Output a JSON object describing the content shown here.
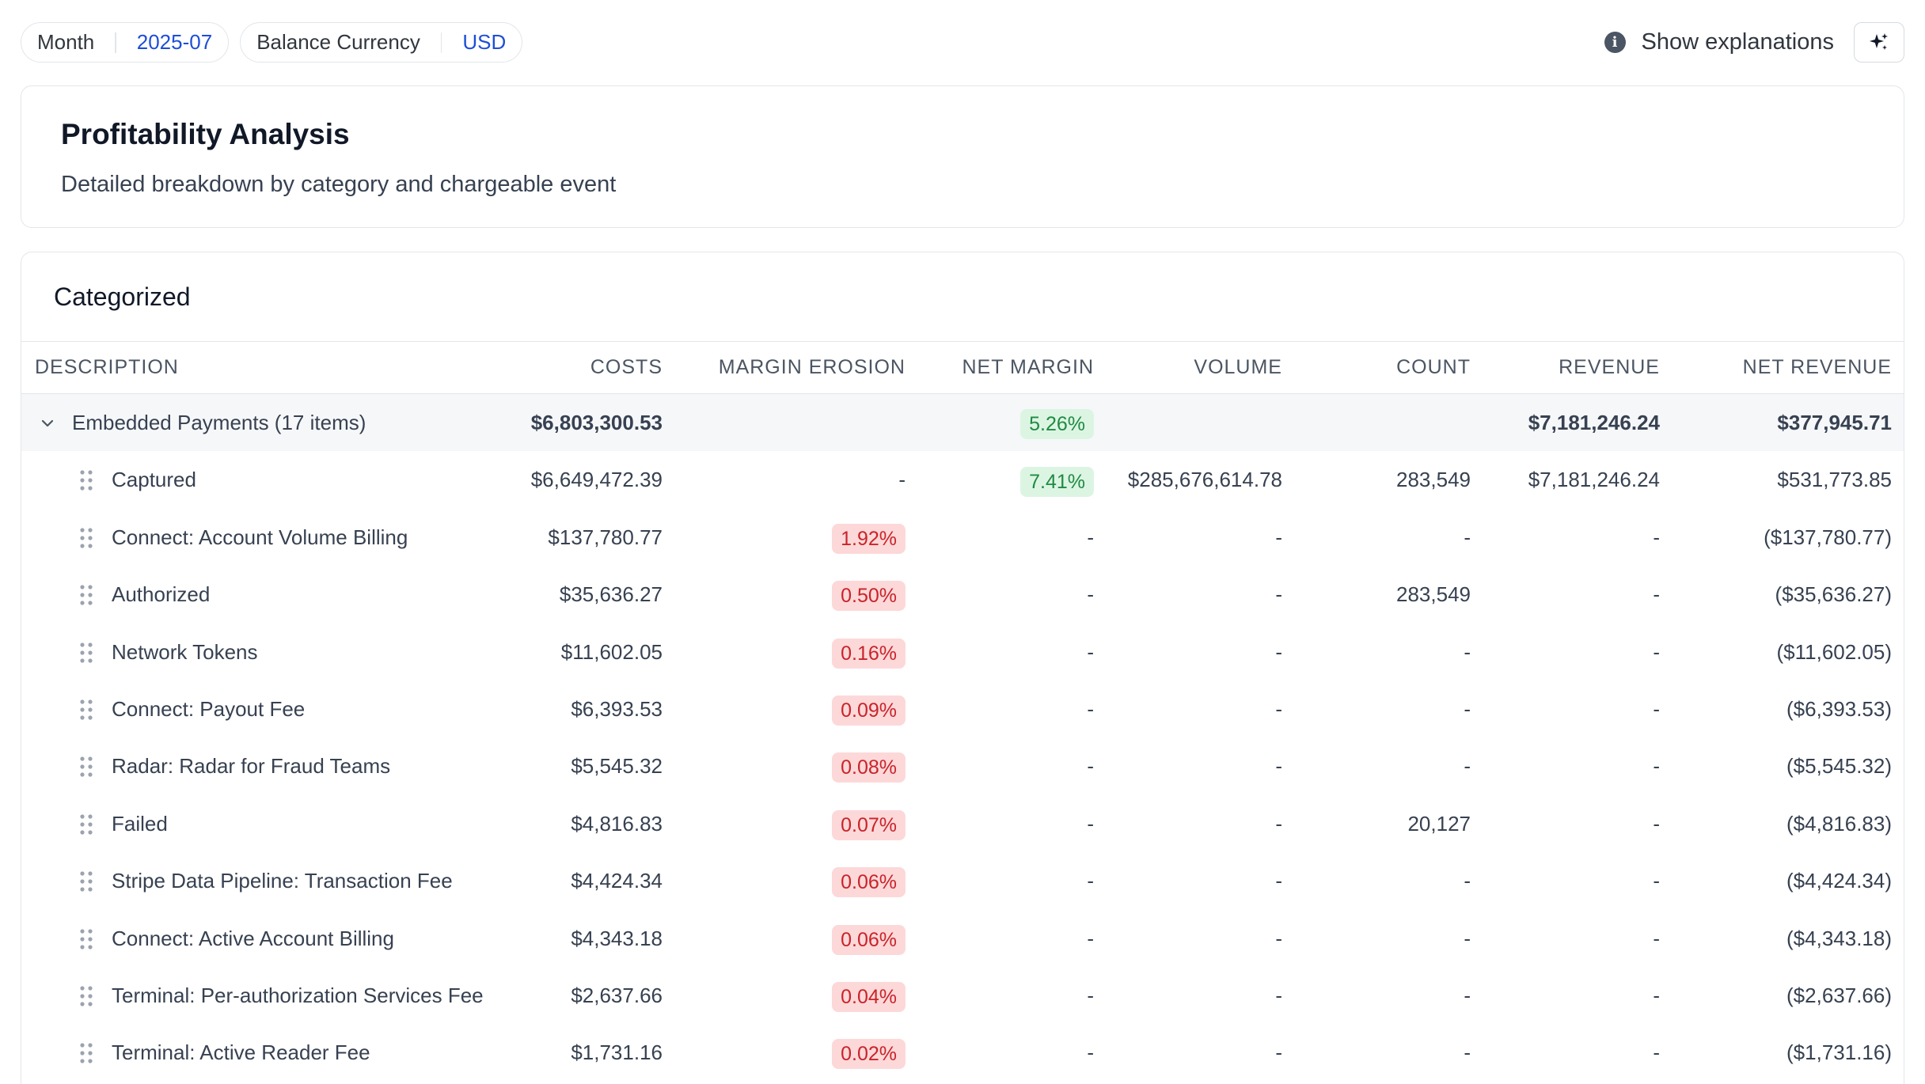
{
  "filters": [
    {
      "label": "Month",
      "value": "2025-07"
    },
    {
      "label": "Balance Currency",
      "value": "USD"
    }
  ],
  "explanations_label": "Show explanations",
  "header": {
    "title": "Profitability Analysis",
    "subtitle": "Detailed breakdown by category and chargeable event"
  },
  "section_title": "Categorized",
  "columns": {
    "description": "DESCRIPTION",
    "costs": "COSTS",
    "margin_erosion": "MARGIN EROSION",
    "net_margin": "NET MARGIN",
    "volume": "VOLUME",
    "count": "COUNT",
    "revenue": "REVENUE",
    "net_revenue": "NET REVENUE"
  },
  "group": {
    "description": "Embedded Payments (17 items)",
    "costs": "$6,803,300.53",
    "net_margin": "5.26%",
    "revenue": "$7,181,246.24",
    "net_revenue": "$377,945.71"
  },
  "rows": [
    {
      "description": "Captured",
      "costs": "$6,649,472.39",
      "margin_erosion": "-",
      "erosion_badge": false,
      "net_margin": "7.41%",
      "margin_badge": true,
      "volume": "$285,676,614.78",
      "count": "283,549",
      "revenue": "$7,181,246.24",
      "net_revenue": "$531,773.85"
    },
    {
      "description": "Connect: Account Volume Billing",
      "costs": "$137,780.77",
      "margin_erosion": "1.92%",
      "erosion_badge": true,
      "net_margin": "-",
      "margin_badge": false,
      "volume": "-",
      "count": "-",
      "revenue": "-",
      "net_revenue": "($137,780.77)"
    },
    {
      "description": "Authorized",
      "costs": "$35,636.27",
      "margin_erosion": "0.50%",
      "erosion_badge": true,
      "net_margin": "-",
      "margin_badge": false,
      "volume": "-",
      "count": "283,549",
      "revenue": "-",
      "net_revenue": "($35,636.27)"
    },
    {
      "description": "Network Tokens",
      "costs": "$11,602.05",
      "margin_erosion": "0.16%",
      "erosion_badge": true,
      "net_margin": "-",
      "margin_badge": false,
      "volume": "-",
      "count": "-",
      "revenue": "-",
      "net_revenue": "($11,602.05)"
    },
    {
      "description": "Connect: Payout Fee",
      "costs": "$6,393.53",
      "margin_erosion": "0.09%",
      "erosion_badge": true,
      "net_margin": "-",
      "margin_badge": false,
      "volume": "-",
      "count": "-",
      "revenue": "-",
      "net_revenue": "($6,393.53)"
    },
    {
      "description": "Radar: Radar for Fraud Teams",
      "costs": "$5,545.32",
      "margin_erosion": "0.08%",
      "erosion_badge": true,
      "net_margin": "-",
      "margin_badge": false,
      "volume": "-",
      "count": "-",
      "revenue": "-",
      "net_revenue": "($5,545.32)"
    },
    {
      "description": "Failed",
      "costs": "$4,816.83",
      "margin_erosion": "0.07%",
      "erosion_badge": true,
      "net_margin": "-",
      "margin_badge": false,
      "volume": "-",
      "count": "20,127",
      "revenue": "-",
      "net_revenue": "($4,816.83)"
    },
    {
      "description": "Stripe Data Pipeline: Transaction Fee",
      "costs": "$4,424.34",
      "margin_erosion": "0.06%",
      "erosion_badge": true,
      "net_margin": "-",
      "margin_badge": false,
      "volume": "-",
      "count": "-",
      "revenue": "-",
      "net_revenue": "($4,424.34)"
    },
    {
      "description": "Connect: Active Account Billing",
      "costs": "$4,343.18",
      "margin_erosion": "0.06%",
      "erosion_badge": true,
      "net_margin": "-",
      "margin_badge": false,
      "volume": "-",
      "count": "-",
      "revenue": "-",
      "net_revenue": "($4,343.18)"
    },
    {
      "description": "Terminal: Per-authorization Services Fee",
      "costs": "$2,637.66",
      "margin_erosion": "0.04%",
      "erosion_badge": true,
      "net_margin": "-",
      "margin_badge": false,
      "volume": "-",
      "count": "-",
      "revenue": "-",
      "net_revenue": "($2,637.66)"
    },
    {
      "description": "Terminal: Active Reader Fee",
      "costs": "$1,731.16",
      "margin_erosion": "0.02%",
      "erosion_badge": true,
      "net_margin": "-",
      "margin_badge": false,
      "volume": "-",
      "count": "-",
      "revenue": "-",
      "net_revenue": "($1,731.16)"
    }
  ],
  "colors": {
    "accent": "#1d4ed8",
    "badge_red_bg": "#fdd8d9",
    "badge_red_text": "#c8242a",
    "badge_green_bg": "#dcf5e3",
    "badge_green_text": "#1f8a43"
  }
}
